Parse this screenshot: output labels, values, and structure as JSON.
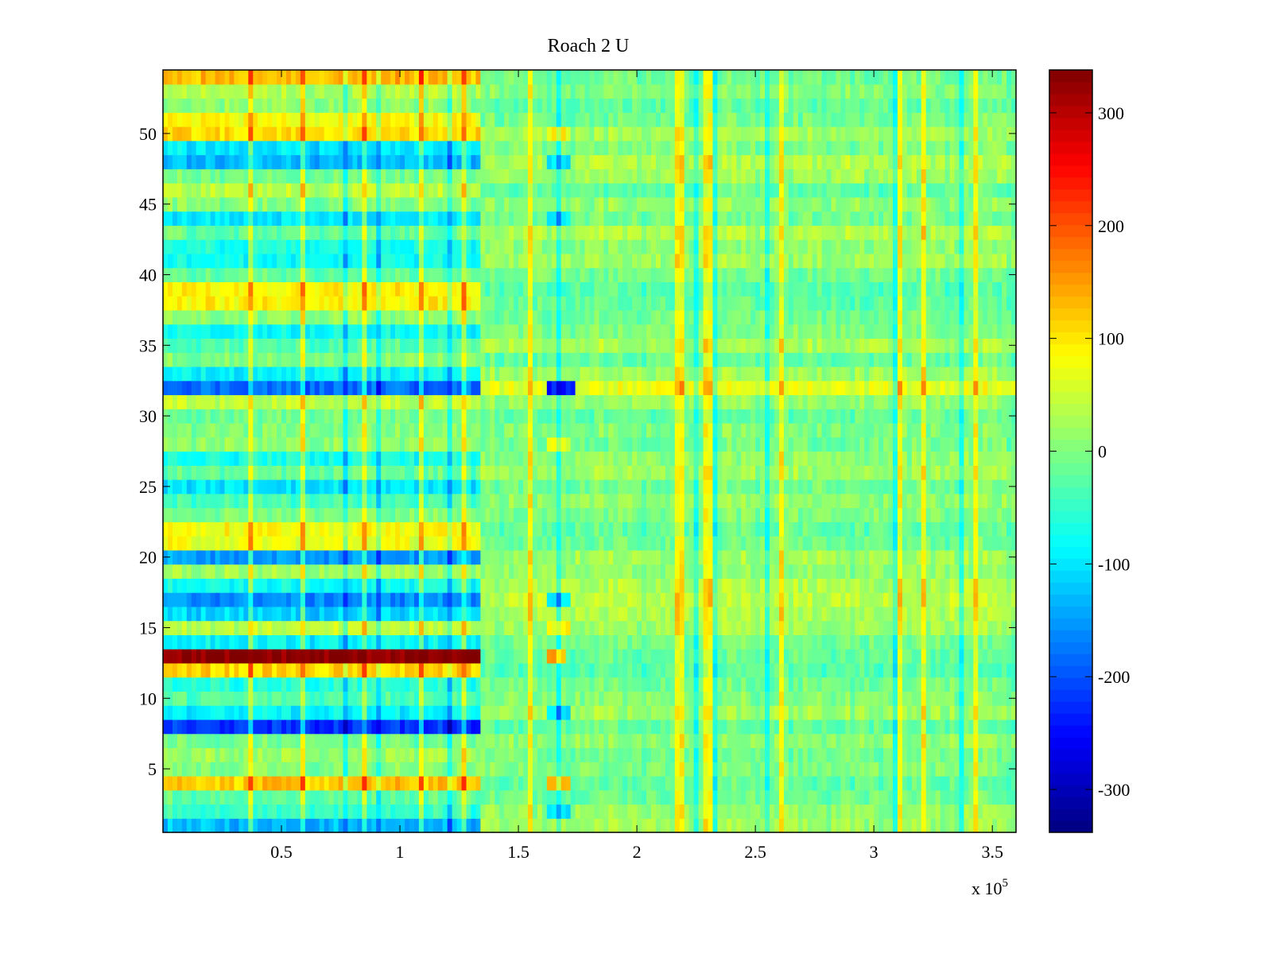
{
  "chart_data": {
    "type": "heatmap",
    "title": "Roach 2 U",
    "xlabel": "",
    "ylabel": "",
    "x_exponent_label": "x 10",
    "x_exponent": "5",
    "xlim": [
      0,
      360000
    ],
    "ylim": [
      0.5,
      54.5
    ],
    "clim": [
      -338,
      338
    ],
    "colormap": "jet",
    "xticks": [
      {
        "value": 50000,
        "label": "0.5"
      },
      {
        "value": 100000,
        "label": "1"
      },
      {
        "value": 150000,
        "label": "1.5"
      },
      {
        "value": 200000,
        "label": "2"
      },
      {
        "value": 250000,
        "label": "2.5"
      },
      {
        "value": 300000,
        "label": "3"
      },
      {
        "value": 350000,
        "label": "3.5"
      }
    ],
    "yticks": [
      {
        "value": 5,
        "label": "5"
      },
      {
        "value": 10,
        "label": "10"
      },
      {
        "value": 15,
        "label": "15"
      },
      {
        "value": 20,
        "label": "20"
      },
      {
        "value": 25,
        "label": "25"
      },
      {
        "value": 30,
        "label": "30"
      },
      {
        "value": 35,
        "label": "35"
      },
      {
        "value": 40,
        "label": "40"
      },
      {
        "value": 45,
        "label": "45"
      },
      {
        "value": 50,
        "label": "50"
      }
    ],
    "colorbar_ticks": [
      {
        "value": 300,
        "label": "300"
      },
      {
        "value": 200,
        "label": "200"
      },
      {
        "value": 100,
        "label": "100"
      },
      {
        "value": 0,
        "label": "0"
      },
      {
        "value": -100,
        "label": "-100"
      },
      {
        "value": -200,
        "label": "-200"
      },
      {
        "value": -300,
        "label": "-300"
      }
    ],
    "rows": 54,
    "segment_boundary_x": 135000,
    "row_means_early": [
      -130,
      -50,
      -20,
      120,
      0,
      20,
      -10,
      -220,
      -90,
      -30,
      -60,
      110,
      330,
      -90,
      40,
      -110,
      -160,
      -80,
      20,
      -150,
      70,
      80,
      0,
      -40,
      -100,
      -20,
      -70,
      10,
      0,
      -10,
      40,
      -180,
      -90,
      0,
      -30,
      -80,
      10,
      90,
      90,
      -20,
      -80,
      -70,
      -20,
      -100,
      0,
      40,
      -10,
      -130,
      -100,
      110,
      80,
      10,
      30,
      130
    ],
    "row_means_late": [
      20,
      10,
      -10,
      -20,
      0,
      -10,
      10,
      -20,
      20,
      0,
      -10,
      -30,
      -20,
      -10,
      20,
      30,
      40,
      30,
      10,
      20,
      -10,
      -20,
      0,
      10,
      -10,
      20,
      10,
      -10,
      0,
      -20,
      10,
      70,
      20,
      -20,
      30,
      0,
      -10,
      -20,
      -30,
      -10,
      20,
      10,
      30,
      -10,
      10,
      -20,
      20,
      30,
      0,
      20,
      -10,
      -20,
      0,
      -10
    ],
    "patches": [
      {
        "row": 32,
        "x_from": 163000,
        "x_to": 174000,
        "value": -230
      },
      {
        "row": 13,
        "x_from": 163000,
        "x_to": 171000,
        "value": 140
      },
      {
        "row": 4,
        "x_from": 163000,
        "x_to": 172000,
        "value": 130
      },
      {
        "row": 15,
        "x_from": 163000,
        "x_to": 172000,
        "value": 90
      },
      {
        "row": 50,
        "x_from": 163000,
        "x_to": 172000,
        "value": 90
      },
      {
        "row": 28,
        "x_from": 163000,
        "x_to": 172000,
        "value": 70
      },
      {
        "row": 9,
        "x_from": 163000,
        "x_to": 172000,
        "value": -100
      },
      {
        "row": 17,
        "x_from": 163000,
        "x_to": 172000,
        "value": -90
      },
      {
        "row": 44,
        "x_from": 163000,
        "x_to": 172000,
        "value": -90
      },
      {
        "row": 48,
        "x_from": 163000,
        "x_to": 172000,
        "value": -90
      },
      {
        "row": 2,
        "x_from": 163000,
        "x_to": 172000,
        "value": -100
      }
    ]
  }
}
